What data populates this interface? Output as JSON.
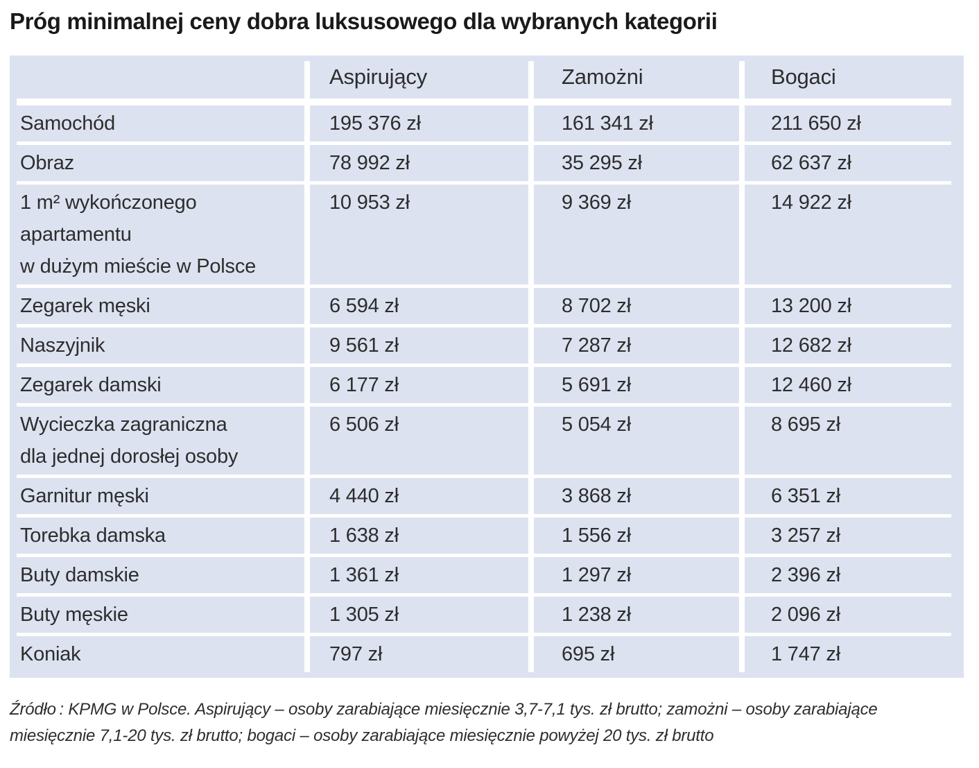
{
  "chart_data": {
    "type": "table",
    "title": "Próg minimalnej ceny dobra luksusowego dla wybranych kategorii",
    "columns": [
      "Aspirujący",
      "Zamożni",
      "Bogaci"
    ],
    "unit": "zł",
    "rows": [
      {
        "category": "Samochód",
        "values": [
          195376,
          161341,
          211650
        ],
        "display": [
          "195 376 zł",
          "161 341 zł",
          "211 650 zł"
        ]
      },
      {
        "category": "Obraz",
        "values": [
          78992,
          35295,
          62637
        ],
        "display": [
          "78 992 zł",
          "35 295 zł",
          "62 637 zł"
        ]
      },
      {
        "category": "1 m² wykończonego\napartamentu\nw dużym mieście w Polsce",
        "values": [
          10953,
          9369,
          14922
        ],
        "display": [
          "10 953 zł",
          "9 369 zł",
          "14 922 zł"
        ]
      },
      {
        "category": "Zegarek męski",
        "values": [
          6594,
          8702,
          13200
        ],
        "display": [
          "6 594 zł",
          "8 702 zł",
          "13 200 zł"
        ]
      },
      {
        "category": "Naszyjnik",
        "values": [
          9561,
          7287,
          12682
        ],
        "display": [
          "9 561 zł",
          "7 287 zł",
          "12 682 zł"
        ]
      },
      {
        "category": "Zegarek damski",
        "values": [
          6177,
          5691,
          12460
        ],
        "display": [
          "6 177 zł",
          "5 691 zł",
          "12 460 zł"
        ]
      },
      {
        "category": "Wycieczka zagraniczna\ndla jednej dorosłej osoby",
        "values": [
          6506,
          5054,
          8695
        ],
        "display": [
          "6 506 zł",
          "5 054 zł",
          "8 695 zł"
        ]
      },
      {
        "category": "Garnitur męski",
        "values": [
          4440,
          3868,
          6351
        ],
        "display": [
          "4 440 zł",
          "3 868 zł",
          "6 351 zł"
        ]
      },
      {
        "category": "Torebka damska",
        "values": [
          1638,
          1556,
          3257
        ],
        "display": [
          "1 638 zł",
          "1 556 zł",
          "3 257 zł"
        ]
      },
      {
        "category": "Buty damskie",
        "values": [
          1361,
          1297,
          2396
        ],
        "display": [
          "1 361 zł",
          "1 297 zł",
          "2 396 zł"
        ]
      },
      {
        "category": "Buty męskie",
        "values": [
          1305,
          1238,
          2096
        ],
        "display": [
          "1 305 zł",
          "1 238 zł",
          "2 096 zł"
        ]
      },
      {
        "category": "Koniak",
        "values": [
          797,
          695,
          1747
        ],
        "display": [
          "797 zł",
          "695 zł",
          "1 747 zł"
        ]
      }
    ],
    "source_note": "Źródło : KPMG w Polsce. Aspirujący – osoby zarabiające miesięcznie 3,7-7,1 tys. zł brutto; zamożni – osoby zarabiające\nmiesięcznie 7,1-20 tys. zł brutto; bogaci – osoby zarabiające miesięcznie powyżej 20 tys. zł brutto",
    "legend_position": "none",
    "grid": "white separator lines on light blue panel"
  },
  "colors": {
    "table_bg": "#dce2f0",
    "separator": "#ffffff",
    "body_text": "#2d2d2d",
    "title_text": "#1a1a1a",
    "page_bg": "#ffffff"
  }
}
